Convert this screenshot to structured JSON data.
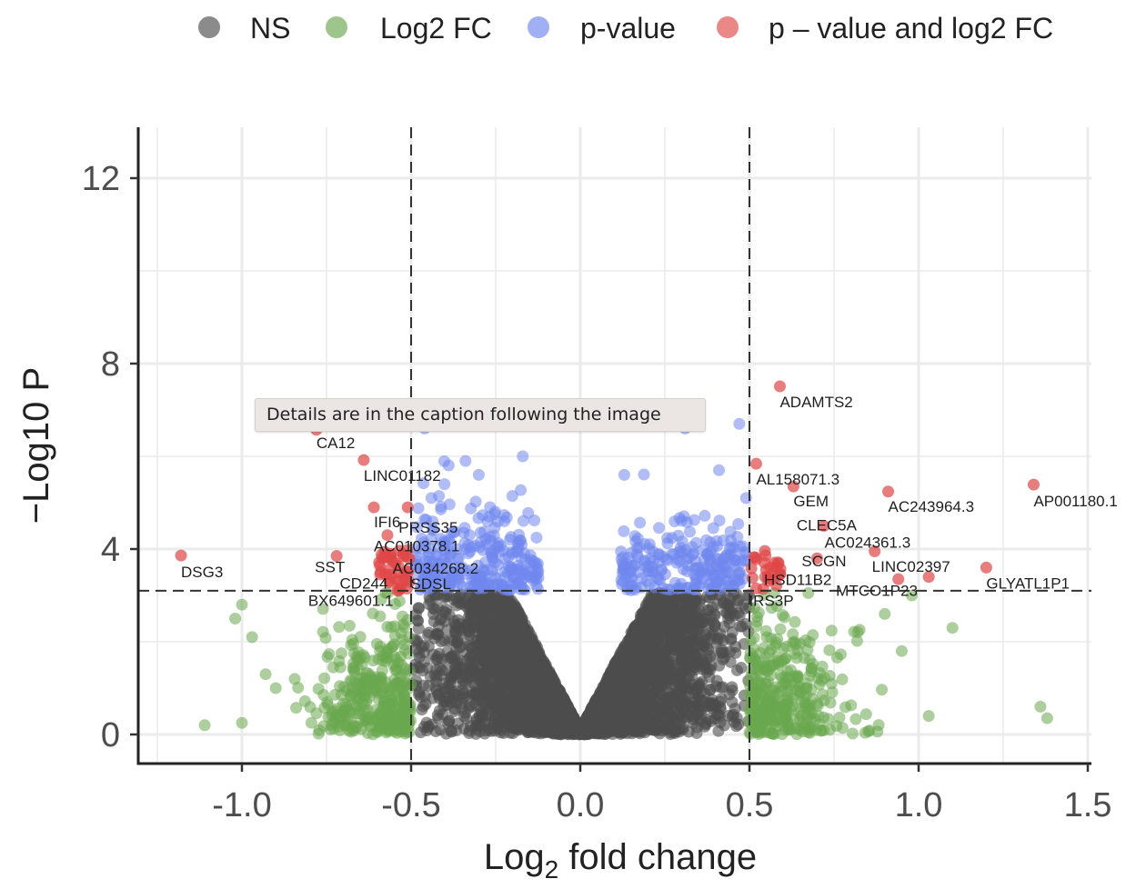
{
  "tooltip": "Details are in the caption following the image",
  "chart_data": {
    "type": "scatter",
    "subtype": "volcano",
    "title": "",
    "xlabel": "Log2 fold change",
    "ylabel": "−Log10 P",
    "xlim": [
      -1.3,
      1.5
    ],
    "ylim": [
      -0.6,
      13.1
    ],
    "xticks": [
      -1.0,
      -0.5,
      0.0,
      0.5,
      1.0,
      1.5
    ],
    "xtick_labels": [
      "-1.0",
      "-0.5",
      "0.0",
      "0.5",
      "1.0",
      "1.5"
    ],
    "yticks": [
      0,
      4,
      8,
      12
    ],
    "ytick_labels": [
      "0",
      "4",
      "8",
      "12"
    ],
    "grid": true,
    "thresholds": {
      "log2fc": [
        -0.5,
        0.5
      ],
      "neg_log10_p": 3.1
    },
    "legend": {
      "placement": "top",
      "entries": [
        {
          "name": "NS",
          "color": "#4d4d4d"
        },
        {
          "name": "Log2 FC",
          "color": "#6aa84f"
        },
        {
          "name": "p-value",
          "color": "#6f86ee"
        },
        {
          "name": "p – value and log2 FC",
          "color": "#e04646"
        }
      ]
    },
    "labeled_points": [
      {
        "gene": "DSG3",
        "x": -1.18,
        "y": 3.86
      },
      {
        "gene": "CA12",
        "x": -0.78,
        "y": 6.57
      },
      {
        "gene": "LINC01182",
        "x": -0.64,
        "y": 5.92
      },
      {
        "gene": "IFI6",
        "x": -0.61,
        "y": 4.9
      },
      {
        "gene": "PRSS35",
        "x": -0.51,
        "y": 4.9
      },
      {
        "gene": "AC010378.1",
        "x": -0.57,
        "y": 4.3
      },
      {
        "gene": "SST",
        "x": -0.72,
        "y": 3.85
      },
      {
        "gene": "AC034268.2",
        "x": -0.56,
        "y": 3.8
      },
      {
        "gene": "CD244",
        "x": -0.59,
        "y": 3.5
      },
      {
        "gene": "SDSL",
        "x": -0.52,
        "y": 3.45
      },
      {
        "gene": "BX649601.1",
        "x": -0.53,
        "y": 3.15
      },
      {
        "gene": "ADAMTS2",
        "x": 0.59,
        "y": 7.51
      },
      {
        "gene": "AL158071.3",
        "x": 0.52,
        "y": 5.84
      },
      {
        "gene": "GEM",
        "x": 0.63,
        "y": 5.35
      },
      {
        "gene": "AC243964.3",
        "x": 0.91,
        "y": 5.24
      },
      {
        "gene": "AP001180.1",
        "x": 1.34,
        "y": 5.39
      },
      {
        "gene": "CLEC5A",
        "x": 0.72,
        "y": 4.5
      },
      {
        "gene": "AC024361.3",
        "x": 0.87,
        "y": 3.95
      },
      {
        "gene": "SCGN",
        "x": 0.7,
        "y": 3.8
      },
      {
        "gene": "LINC02397",
        "x": 0.94,
        "y": 3.35
      },
      {
        "gene": "GLYATL1P1",
        "x": 1.2,
        "y": 3.6
      },
      {
        "gene": "HSD11B2",
        "x": 0.57,
        "y": 3.5
      },
      {
        "gene": "MTCO1P23",
        "x": 1.03,
        "y": 3.4
      },
      {
        "gene": "IRS3P",
        "x": 0.52,
        "y": 3.15
      }
    ],
    "outlier_points": {
      "Log2 FC": [
        [
          -1.11,
          0.2
        ],
        [
          -1.0,
          0.25
        ],
        [
          -1.0,
          2.8
        ],
        [
          -1.02,
          2.5
        ],
        [
          -0.97,
          2.1
        ],
        [
          -0.93,
          1.3
        ],
        [
          -0.9,
          1.0
        ],
        [
          1.38,
          0.35
        ],
        [
          1.36,
          0.6
        ],
        [
          1.03,
          0.4
        ],
        [
          1.1,
          2.3
        ],
        [
          0.98,
          3.0
        ],
        [
          0.9,
          2.6
        ],
        [
          0.95,
          1.8
        ]
      ],
      "p-value": [
        [
          -0.46,
          6.6
        ],
        [
          -0.17,
          6.0
        ],
        [
          -0.3,
          5.6
        ],
        [
          0.47,
          6.7
        ],
        [
          0.31,
          6.6
        ],
        [
          0.41,
          5.7
        ],
        [
          0.13,
          5.6
        ],
        [
          -0.44,
          5.1
        ],
        [
          0.49,
          5.1
        ]
      ]
    }
  }
}
